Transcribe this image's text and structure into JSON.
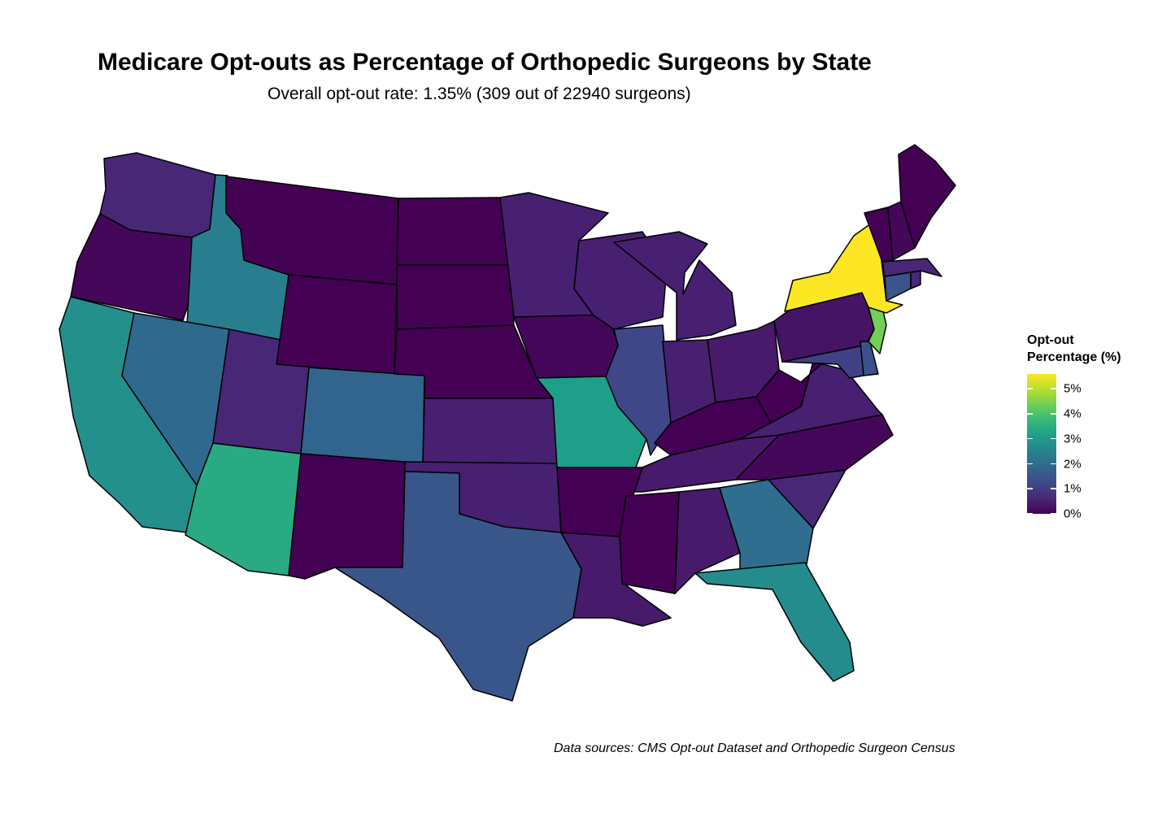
{
  "title": "Medicare Opt-outs as Percentage of Orthopedic Surgeons by State",
  "subtitle": "Overall opt-out rate: 1.35% (309 out of 22940 surgeons)",
  "caption": "Data sources: CMS Opt-out Dataset and Orthopedic Surgeon Census",
  "legend": {
    "title_line1": "Opt-out",
    "title_line2": "Percentage (%)",
    "ticks": [
      {
        "value": 5,
        "label": "5%"
      },
      {
        "value": 4,
        "label": "4%"
      },
      {
        "value": 3,
        "label": "3%"
      },
      {
        "value": 2,
        "label": "2%"
      },
      {
        "value": 1,
        "label": "1%"
      },
      {
        "value": 0,
        "label": "0%"
      }
    ],
    "range": [
      0,
      5.6
    ],
    "palette": [
      "#440154",
      "#482878",
      "#3e4989",
      "#31688e",
      "#26828e",
      "#1f9e89",
      "#35b779",
      "#6ece58",
      "#b5de2b",
      "#fde725"
    ]
  },
  "chart_data": {
    "type": "choropleth",
    "variable": "Opt-out Percentage (%)",
    "states": {
      "WA": 0.6,
      "OR": 0.1,
      "CA": 2.8,
      "ID": 2.4,
      "NV": 1.9,
      "AZ": 3.4,
      "MT": 0.0,
      "WY": 0.0,
      "UT": 0.6,
      "CO": 1.8,
      "NM": 0.0,
      "ND": 0.0,
      "SD": 0.0,
      "NE": 0.0,
      "KS": 0.5,
      "OK": 0.5,
      "TX": 1.5,
      "MN": 0.5,
      "IA": 0.1,
      "MO": 3.1,
      "AR": 0.0,
      "LA": 0.4,
      "WI": 0.5,
      "IL": 1.2,
      "MI": 0.5,
      "IN": 0.5,
      "OH": 0.4,
      "KY": 0.0,
      "TN": 0.4,
      "MS": 0.0,
      "AL": 0.4,
      "GA": 2.0,
      "FL": 2.7,
      "SC": 0.6,
      "NC": 0.1,
      "VA": 0.5,
      "WV": 0.0,
      "PA": 0.3,
      "NY": 5.6,
      "NJ": 4.4,
      "DE": 1.4,
      "MD": 1.1,
      "CT": 1.5,
      "RI": 0.6,
      "MA": 0.6,
      "VT": 0.0,
      "NH": 0.1,
      "ME": 0.0
    }
  }
}
